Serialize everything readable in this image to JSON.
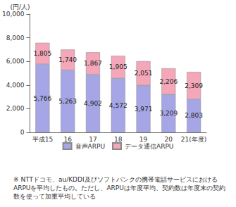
{
  "chart_data": {
    "type": "bar",
    "stacked": true,
    "data_labels": true,
    "grid": false,
    "legend": "bottom",
    "y_label": "(円/人)",
    "categories": [
      "平成15",
      "16",
      "17",
      "18",
      "19",
      "20",
      "21(年度)"
    ],
    "series": [
      {
        "name": "音声ARPU",
        "color": "#a6a6e6",
        "values": [
          5766,
          5263,
          4902,
          4572,
          3971,
          3209,
          2803
        ],
        "value_labels": [
          "5,766",
          "5,263",
          "4,902",
          "4,572",
          "3,971",
          "3,209",
          "2,803"
        ]
      },
      {
        "name": "データ通信ARPU",
        "color": "#f3a7b9",
        "values": [
          1805,
          1740,
          1867,
          1905,
          2051,
          2206,
          2309
        ],
        "value_labels": [
          "1,805",
          "1,740",
          "1,867",
          "1,905",
          "2,051",
          "2,206",
          "2,309"
        ]
      }
    ],
    "totals": {
      "values": [
        7570,
        7004,
        6769,
        6477,
        6021,
        5415,
        5112
      ],
      "value_labels": [
        "7,570",
        "7,004",
        "6,769",
        "6,477",
        "6,021",
        "5,415",
        "5,112"
      ]
    },
    "ylim": [
      0,
      10000
    ],
    "yticks": [
      0,
      {
        "value": 2000,
        "label": "2,000"
      },
      {
        "value": 4000,
        "label": "4,000"
      },
      {
        "value": 6000,
        "label": "6,000"
      },
      {
        "value": 8000,
        "label": "8,000"
      },
      {
        "value": 10000,
        "label": "10,000"
      }
    ],
    "note": "※ NTTドコモ、au/KDDI及びソフトバンクの携帯電話サービスにおけるARPUを平均したもの。ただし、ARPUは年度平均、契約数は年度末の契約数を使って加重平均している"
  }
}
